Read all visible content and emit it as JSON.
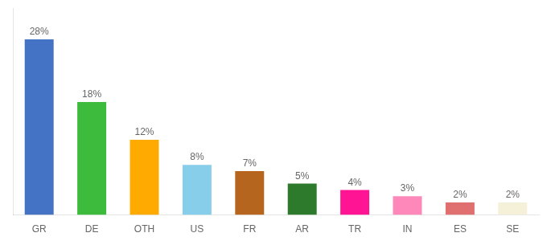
{
  "chart_data": {
    "type": "bar",
    "categories": [
      "GR",
      "DE",
      "OTH",
      "US",
      "FR",
      "AR",
      "TR",
      "IN",
      "ES",
      "SE"
    ],
    "values": [
      28,
      18,
      12,
      8,
      7,
      5,
      4,
      3,
      2,
      2
    ],
    "value_labels": [
      "28%",
      "18%",
      "12%",
      "8%",
      "7%",
      "5%",
      "4%",
      "3%",
      "2%",
      "2%"
    ],
    "colors": [
      "#4472c4",
      "#3dbb3d",
      "#ffaa00",
      "#87ceeb",
      "#b5651d",
      "#2d7a2d",
      "#ff1493",
      "#ff88bb",
      "#e07070",
      "#f5f0d8"
    ],
    "ylim": [
      0,
      33
    ],
    "data_labels": true,
    "tick_labels": "x",
    "grid": false
  }
}
